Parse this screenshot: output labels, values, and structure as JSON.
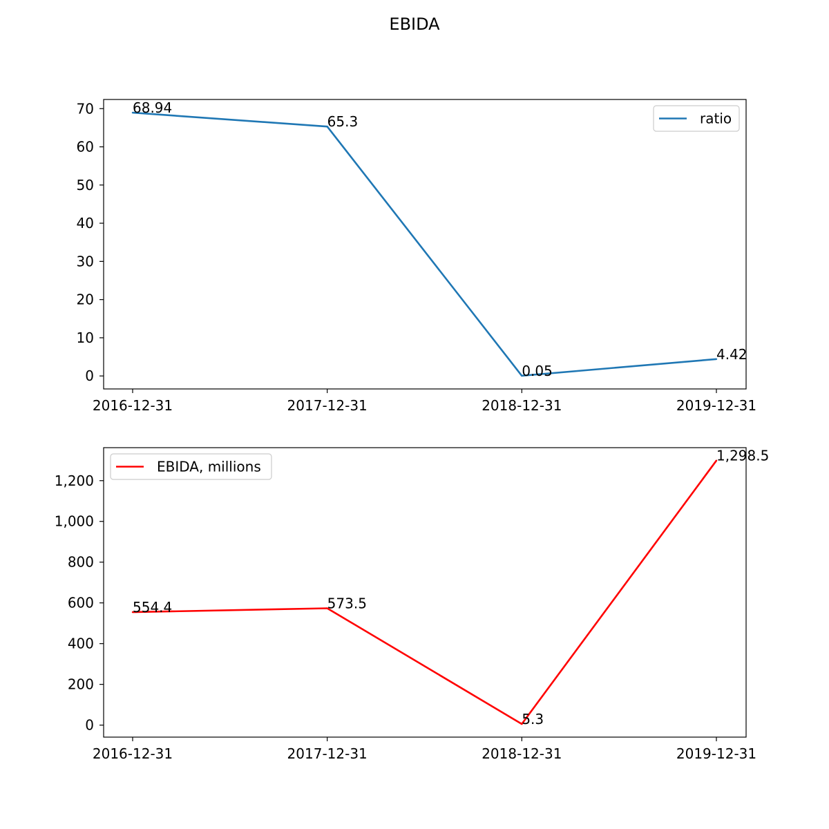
{
  "figure": {
    "title": "EBIDA"
  },
  "chart_data": [
    {
      "type": "line",
      "title": "",
      "xlabel": "",
      "ylabel": "",
      "categories": [
        "2016-12-31",
        "2017-12-31",
        "2018-12-31",
        "2019-12-31"
      ],
      "series": [
        {
          "name": "ratio",
          "color": "#1f77b4",
          "values": [
            68.94,
            65.3,
            0.05,
            4.42
          ],
          "labels": [
            "68.94",
            "65.3",
            "0.05",
            "4.42"
          ]
        }
      ],
      "ylim": [
        -3.4,
        72.4
      ],
      "yticks": [
        0,
        10,
        20,
        30,
        40,
        50,
        60,
        70
      ],
      "ytick_labels": [
        "0",
        "10",
        "20",
        "30",
        "40",
        "50",
        "60",
        "70"
      ],
      "grid": false,
      "legend": "upper right"
    },
    {
      "type": "line",
      "title": "",
      "xlabel": "",
      "ylabel": "",
      "categories": [
        "2016-12-31",
        "2017-12-31",
        "2018-12-31",
        "2019-12-31"
      ],
      "series": [
        {
          "name": "EBIDA, millions",
          "color": "#ff0000",
          "values": [
            554.4,
            573.5,
            5.3,
            1298.5
          ],
          "labels": [
            "554.4",
            "573.5",
            "5.3",
            "1,298.5"
          ]
        }
      ],
      "ylim": [
        -59,
        1362
      ],
      "yticks": [
        0,
        200,
        400,
        600,
        800,
        1000,
        1200
      ],
      "ytick_labels": [
        "0",
        "200",
        "400",
        "600",
        "800",
        "1,000",
        "1,200"
      ],
      "grid": false,
      "legend": "upper left"
    }
  ]
}
